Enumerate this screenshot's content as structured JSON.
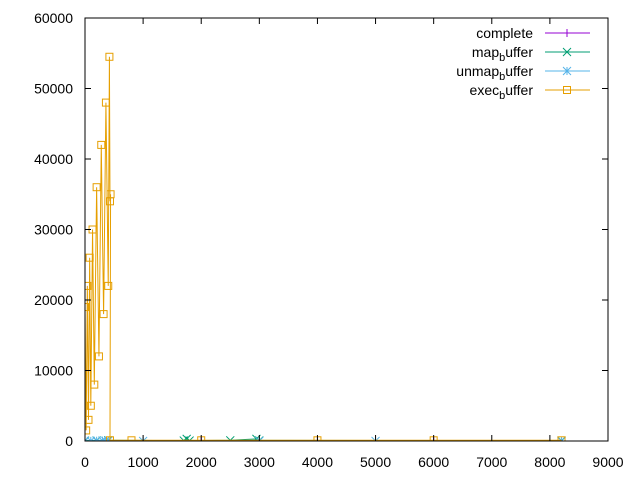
{
  "chart_data": {
    "type": "line",
    "title": "",
    "xlabel": "",
    "ylabel": "",
    "xlim": [
      0,
      9000
    ],
    "ylim": [
      0,
      60000
    ],
    "x_ticks": [
      0,
      1000,
      2000,
      3000,
      4000,
      5000,
      6000,
      7000,
      8000,
      9000
    ],
    "y_ticks": [
      0,
      10000,
      20000,
      30000,
      40000,
      50000,
      60000
    ],
    "grid": false,
    "legend_position": "top-right",
    "series": [
      {
        "name": "complete",
        "legend_text": "complete",
        "legend_sub": "",
        "legend_rest": "",
        "color": "#9400d3",
        "marker": "plus",
        "x": [
          0,
          2000,
          4000,
          6000,
          8200
        ],
        "y": [
          0,
          0,
          0,
          0,
          0
        ]
      },
      {
        "name": "map_buffer",
        "legend_text": "map",
        "legend_sub": "b",
        "legend_rest": "uffer",
        "color": "#009e73",
        "marker": "x",
        "x": [
          0,
          200,
          400,
          1700,
          1750,
          1800,
          2500,
          2950,
          3000,
          8200
        ],
        "y": [
          50,
          80,
          100,
          60,
          300,
          60,
          100,
          300,
          80,
          50
        ]
      },
      {
        "name": "unmap_buffer",
        "legend_text": "unmap",
        "legend_sub": "b",
        "legend_rest": "uffer",
        "color": "#56b4e9",
        "marker": "star",
        "x": [
          0,
          100,
          200,
          300,
          350,
          400,
          1000,
          3000,
          5000,
          8200
        ],
        "y": [
          0,
          20,
          30,
          60,
          40,
          20,
          10,
          10,
          10,
          0
        ]
      },
      {
        "name": "exec_buffer",
        "legend_text": "exec",
        "legend_sub": "b",
        "legend_rest": "uffer",
        "color": "#e69f00",
        "marker": "square",
        "x": [
          0,
          20,
          40,
          60,
          80,
          100,
          130,
          160,
          200,
          240,
          280,
          320,
          360,
          400,
          420,
          430,
          440,
          430,
          800,
          2000,
          4000,
          6000,
          8200
        ],
        "y": [
          19000,
          1500,
          22000,
          3000,
          26000,
          5000,
          30000,
          8000,
          36000,
          12000,
          42000,
          18000,
          48000,
          22000,
          54500,
          34000,
          35000,
          100,
          100,
          100,
          100,
          100,
          100
        ]
      }
    ]
  }
}
